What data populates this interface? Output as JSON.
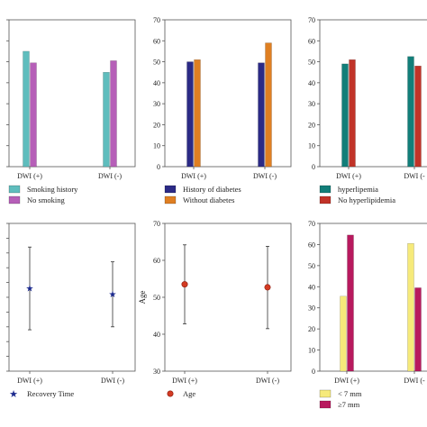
{
  "chart_data": [
    {
      "type": "bar",
      "categories": [
        "DWI (+)",
        "DWI (-)"
      ],
      "series": [
        {
          "name": "Smoking history",
          "values": [
            55,
            45
          ],
          "color": "#5fbdbd"
        },
        {
          "name": "No smoking",
          "values": [
            49.5,
            50.5
          ],
          "color": "#b65fb8"
        }
      ],
      "ylim": [
        0,
        70
      ],
      "yticks": [
        0,
        10,
        20,
        30,
        40,
        50,
        60,
        70
      ],
      "ytick_labels": [
        "",
        "",
        "",
        "",
        "",
        "",
        "",
        ""
      ],
      "ylabel": ""
    },
    {
      "type": "bar",
      "categories": [
        "DWI (+)",
        "DWI (-)"
      ],
      "series": [
        {
          "name": "History of diabetes",
          "values": [
            50,
            49.5
          ],
          "color": "#2b2a86"
        },
        {
          "name": "Without diabetes",
          "values": [
            51,
            59
          ],
          "color": "#df7f22"
        }
      ],
      "ylim": [
        0,
        70
      ],
      "yticks": [
        0,
        10,
        20,
        30,
        40,
        50,
        60,
        70
      ],
      "ytick_labels": [
        "0",
        "10",
        "20",
        "30",
        "40",
        "50",
        "60",
        "70"
      ],
      "ylabel": ""
    },
    {
      "type": "bar",
      "categories": [
        "DWI (+)",
        "DWI (-"
      ],
      "series": [
        {
          "name": "hyperlipemia",
          "values": [
            49,
            52.5
          ],
          "color": "#127e79"
        },
        {
          "name": "No hyperlipidemia",
          "values": [
            51,
            48
          ],
          "color": "#c13328"
        }
      ],
      "ylim": [
        0,
        70
      ],
      "yticks": [
        0,
        10,
        20,
        30,
        40,
        50,
        60,
        70
      ],
      "ytick_labels": [
        "0",
        "10",
        "20",
        "30",
        "40",
        "50",
        "60",
        "70"
      ],
      "ylabel": ""
    },
    {
      "type": "scatter",
      "categories": [
        "DWI (+)",
        "DWI (-)"
      ],
      "series": [
        {
          "name": "Recovery Time",
          "values": [
            28,
            26
          ],
          "err_low": [
            14,
            15
          ],
          "err_high": [
            42,
            37
          ],
          "color": "#1c2a8e",
          "marker": "star"
        }
      ],
      "ylim": [
        0,
        50
      ],
      "yticks": [
        0,
        5,
        10,
        15,
        20,
        25,
        30,
        35,
        40,
        45,
        50
      ],
      "ytick_labels": [
        "",
        "",
        "",
        "",
        "",
        "",
        "",
        "",
        "",
        "",
        ""
      ],
      "ylabel": ""
    },
    {
      "type": "scatter",
      "categories": [
        "DWI (+)",
        "DWI (-)"
      ],
      "series": [
        {
          "name": "Age",
          "values": [
            53.5,
            52.7
          ],
          "err_low": [
            42.8,
            41.5
          ],
          "err_high": [
            64.2,
            63.8
          ],
          "color": "#d33b23",
          "marker": "circle"
        }
      ],
      "ylim": [
        30,
        70
      ],
      "yticks": [
        30,
        40,
        50,
        60,
        70
      ],
      "ytick_labels": [
        "30",
        "40",
        "50",
        "60",
        "70"
      ],
      "ylabel": "Age"
    },
    {
      "type": "bar",
      "categories": [
        "DWI (+)",
        "DWI (-"
      ],
      "series": [
        {
          "name": "< 7 mm",
          "values": [
            35.5,
            60.5
          ],
          "color": "#f6ea7a"
        },
        {
          "name": "≥7 mm",
          "values": [
            64.5,
            39.5
          ],
          "color": "#b8195e"
        }
      ],
      "ylim": [
        0,
        70
      ],
      "yticks": [
        0,
        10,
        20,
        30,
        40,
        50,
        60,
        70
      ],
      "ytick_labels": [
        "0",
        "10",
        "20",
        "30",
        "40",
        "50",
        "60",
        "70"
      ],
      "ylabel": ""
    }
  ]
}
